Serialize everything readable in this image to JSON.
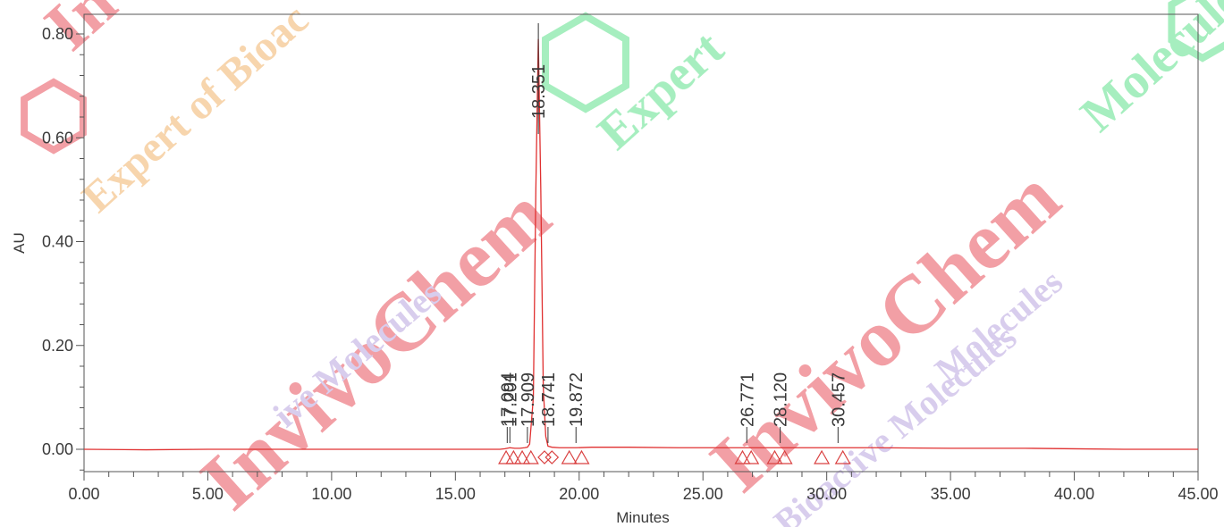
{
  "chart_data": {
    "type": "line",
    "xlabel": "Minutes",
    "ylabel": "AU",
    "xlim": [
      0,
      45
    ],
    "ylim": [
      -0.04,
      0.82
    ],
    "x_ticks": [
      0,
      5,
      10,
      15,
      20,
      25,
      30,
      35,
      40,
      45
    ],
    "x_tick_labels": [
      "0.00",
      "5.00",
      "10.00",
      "15.00",
      "20.00",
      "25.00",
      "30.00",
      "35.00",
      "40.00",
      "45.00"
    ],
    "y_ticks": [
      0,
      0.2,
      0.4,
      0.6,
      0.8
    ],
    "y_tick_labels": [
      "0.00",
      "0.20",
      "0.40",
      "0.60",
      "0.80"
    ],
    "series": [
      {
        "color": "#e03030",
        "x": [
          0,
          2.5,
          5,
          10,
          15,
          16.8,
          17.0,
          17.09,
          17.2,
          17.4,
          17.6,
          17.8,
          17.91,
          18.0,
          18.15,
          18.25,
          18.35,
          18.45,
          18.55,
          18.65,
          18.74,
          18.9,
          19.2,
          19.87,
          20.5,
          22,
          24,
          26,
          26.77,
          27.5,
          28.12,
          29,
          30.46,
          32,
          35,
          38,
          40,
          42,
          45
        ],
        "y": [
          0.0,
          -0.001,
          0.0,
          0.0,
          0.0,
          0.0,
          0.001,
          0.002,
          0.003,
          0.002,
          0.002,
          0.003,
          0.004,
          0.01,
          0.1,
          0.5,
          0.79,
          0.5,
          0.12,
          0.025,
          0.006,
          0.004,
          0.003,
          0.003,
          0.004,
          0.004,
          0.003,
          0.003,
          0.003,
          0.003,
          0.003,
          0.003,
          0.003,
          0.003,
          0.002,
          0.002,
          0.001,
          0.0,
          0.0
        ]
      }
    ],
    "peaks": [
      {
        "rt": 17.094,
        "label": "17.094"
      },
      {
        "rt": 17.201,
        "label": "17.201"
      },
      {
        "rt": 17.909,
        "label": "17.909"
      },
      {
        "rt": 18.351,
        "label": "18.351"
      },
      {
        "rt": 18.741,
        "label": "18.741"
      },
      {
        "rt": 19.872,
        "label": "19.872"
      },
      {
        "rt": 26.771,
        "label": "26.771"
      },
      {
        "rt": 28.12,
        "label": "28.120"
      },
      {
        "rt": 30.457,
        "label": "30.457"
      }
    ],
    "peak_marks": [
      {
        "rt": 17.05,
        "shape": "triangle"
      },
      {
        "rt": 17.35,
        "shape": "triangle"
      },
      {
        "rt": 17.7,
        "shape": "triangle"
      },
      {
        "rt": 18.05,
        "shape": "triangle"
      },
      {
        "rt": 18.6,
        "shape": "diamond"
      },
      {
        "rt": 18.9,
        "shape": "diamond"
      },
      {
        "rt": 19.6,
        "shape": "triangle"
      },
      {
        "rt": 20.1,
        "shape": "triangle"
      },
      {
        "rt": 26.6,
        "shape": "triangle"
      },
      {
        "rt": 26.95,
        "shape": "triangle"
      },
      {
        "rt": 27.9,
        "shape": "triangle"
      },
      {
        "rt": 28.3,
        "shape": "triangle"
      },
      {
        "rt": 29.8,
        "shape": "triangle"
      },
      {
        "rt": 30.65,
        "shape": "triangle"
      }
    ],
    "grid": false,
    "legend": "none"
  },
  "watermark": {
    "colors": {
      "red": "#e8505b",
      "orange": "#f0b26b",
      "green": "#5ee08a",
      "violet": "#b9a4df"
    },
    "texts": [
      "Inv",
      "Expert of Bioac",
      "Expert",
      "InvivoChem",
      "InvivoChem",
      "ive Molecules",
      "Molecules",
      "Bioactive Molecules",
      "Molecules"
    ]
  }
}
